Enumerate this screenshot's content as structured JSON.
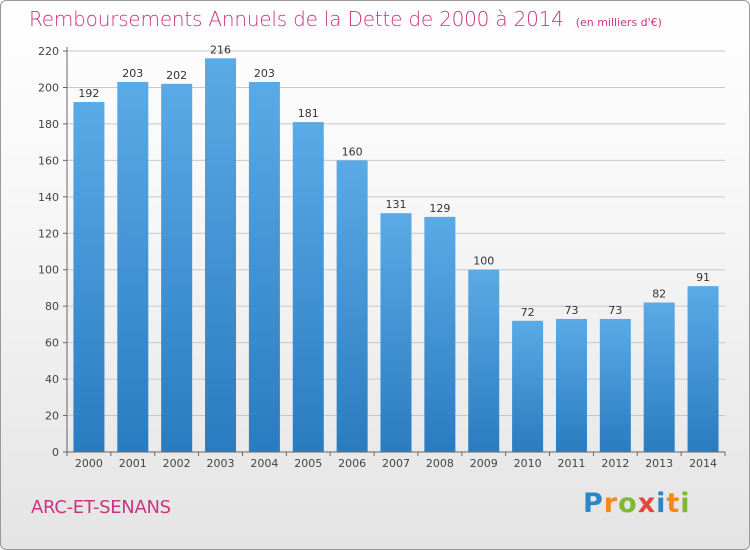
{
  "title": "Remboursements Annuels de la Dette de 2000 à 2014",
  "unit_note": "(en milliers d'€)",
  "municipality": "ARC-ET-SENANS",
  "logo": {
    "p": "P",
    "r": "r",
    "o1": "o",
    "x": "x",
    "i1": "i",
    "t": "t",
    "i2": "i"
  },
  "colors": {
    "title": "#cc3380",
    "bar_top": "#5aaae6",
    "bar_bottom": "#2a7cc0",
    "grid": "#c8c8c8"
  },
  "chart_data": {
    "type": "bar",
    "title": "Remboursements Annuels de la Dette de 2000 à 2014",
    "subtitle": "(en milliers d'€)",
    "categories": [
      "2000",
      "2001",
      "2002",
      "2003",
      "2004",
      "2005",
      "2006",
      "2007",
      "2008",
      "2009",
      "2010",
      "2011",
      "2012",
      "2013",
      "2014"
    ],
    "values": [
      192,
      203,
      202,
      216,
      203,
      181,
      160,
      131,
      129,
      100,
      72,
      73,
      73,
      82,
      91
    ],
    "data_labels": [
      "192",
      "203",
      "202",
      "216",
      "203",
      "181",
      "160",
      "131",
      "129",
      "100",
      "72",
      "73",
      "73",
      "82",
      "91"
    ],
    "yticks": [
      0,
      20,
      40,
      60,
      80,
      100,
      120,
      140,
      160,
      180,
      200,
      220
    ],
    "ylim": [
      0,
      220
    ],
    "xlabel": "",
    "ylabel": "",
    "grid": true
  }
}
